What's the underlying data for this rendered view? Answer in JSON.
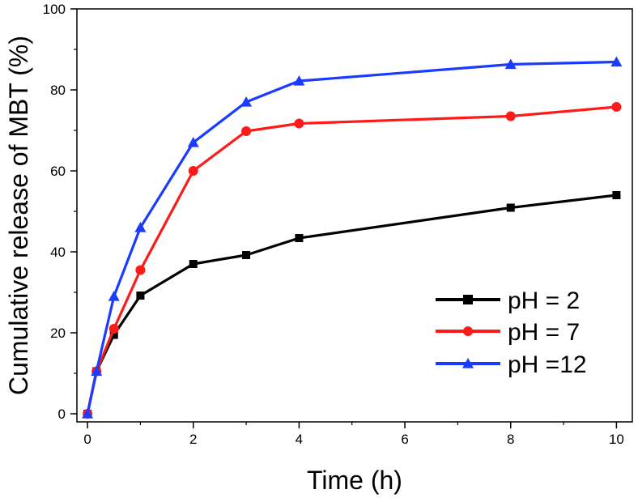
{
  "chart_data": {
    "type": "line",
    "title": "",
    "xlabel": "Time (h)",
    "ylabel": "Cumulative release of MBT (%)",
    "xlim": [
      -0.2,
      10.3
    ],
    "ylim": [
      -2,
      100
    ],
    "x_major_ticks": [
      0,
      2,
      4,
      6,
      8,
      10
    ],
    "x_minor_ticks": [
      1,
      3,
      5,
      7,
      9
    ],
    "y_major_ticks": [
      0,
      20,
      40,
      60,
      80,
      100
    ],
    "y_minor_ticks": [
      10,
      30,
      50,
      70,
      90
    ],
    "x_tick_labels": [
      "0",
      "2",
      "4",
      "6",
      "8",
      "10"
    ],
    "y_tick_labels": [
      "0",
      "20",
      "40",
      "60",
      "80",
      "100"
    ],
    "x": [
      0,
      0.17,
      0.5,
      1,
      2,
      3,
      4,
      8,
      10
    ],
    "series": [
      {
        "name": "pH = 2",
        "label": "pH = 2",
        "color": "#000000",
        "marker": "square",
        "values": [
          0,
          10.5,
          19.5,
          29.2,
          37,
          39.2,
          43.4,
          50.9,
          54
        ]
      },
      {
        "name": "pH = 7",
        "label": "pH = 7",
        "color": "#ff1a1a",
        "marker": "circle",
        "values": [
          0,
          10.5,
          21,
          35.5,
          60,
          69.8,
          71.7,
          73.5,
          75.8
        ]
      },
      {
        "name": "pH =12",
        "label": "pH =12",
        "color": "#1a3cff",
        "marker": "triangle",
        "values": [
          0,
          10.5,
          29,
          46,
          67,
          77,
          82.2,
          86.3,
          86.9
        ]
      }
    ],
    "legend_position": "bottom-right",
    "grid": false
  }
}
